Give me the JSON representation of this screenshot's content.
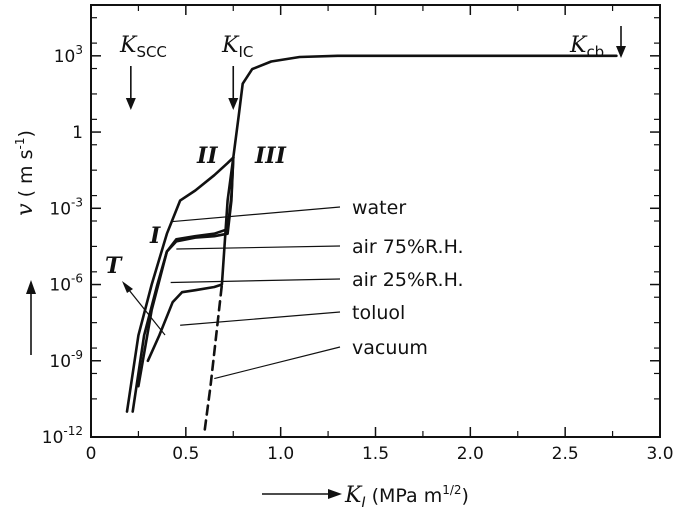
{
  "chart_data": {
    "type": "line",
    "title": "",
    "xlabel": "K_I (MPa m^1/2)",
    "ylabel": "v (m s^-1)",
    "x_axis": {
      "range": [
        0,
        3.0
      ],
      "ticks": [
        0,
        0.5,
        1.0,
        1.5,
        2.0,
        2.5,
        3.0
      ],
      "tick_labels": [
        "0",
        "0.5",
        "1.0",
        "1.5",
        "2.0",
        "2.5",
        "3.0"
      ]
    },
    "y_axis": {
      "scale": "log",
      "range": [
        1e-12,
        100000.0
      ],
      "ticks": [
        1e-12,
        1e-09,
        1e-06,
        0.001,
        1,
        1000.0
      ],
      "tick_labels": [
        "10^-12",
        "10^-9",
        "10^-6",
        "10^-3",
        "1",
        "10^3"
      ]
    },
    "grid": false,
    "legend": "none",
    "series": [
      {
        "name": "water",
        "x": [
          0.19,
          0.25,
          0.32,
          0.4,
          0.47,
          0.55,
          0.65,
          0.72,
          0.75
        ],
        "y": [
          1e-11,
          1e-08,
          1e-06,
          0.0001,
          0.002,
          0.005,
          0.02,
          0.06,
          0.1
        ]
      },
      {
        "name": "air 75%R.H.",
        "x": [
          0.22,
          0.28,
          0.35,
          0.4,
          0.45,
          0.55,
          0.65,
          0.72,
          0.74,
          0.75
        ],
        "y": [
          1e-11,
          1e-08,
          1e-06,
          2e-05,
          6e-05,
          8e-05,
          0.0001,
          0.00015,
          0.003,
          0.1
        ]
      },
      {
        "name": "air 25%R.H.",
        "x": [
          0.25,
          0.32,
          0.4,
          0.45,
          0.55,
          0.65,
          0.72,
          0.74,
          0.75
        ],
        "y": [
          1e-10,
          1e-07,
          2e-05,
          5e-05,
          7e-05,
          8e-05,
          0.0001,
          0.002,
          0.1
        ]
      },
      {
        "name": "toluol",
        "x": [
          0.3,
          0.36,
          0.43,
          0.48,
          0.55,
          0.65,
          0.69,
          0.72,
          0.75
        ],
        "y": [
          1e-09,
          1e-08,
          2e-07,
          5e-07,
          6e-07,
          8e-07,
          1e-06,
          0.002,
          0.1
        ]
      },
      {
        "name": "vacuum",
        "x": [
          0.6,
          0.63,
          0.66,
          0.69
        ],
        "y": [
          2e-12,
          1e-10,
          1e-08,
          1e-06
        ]
      },
      {
        "name": "",
        "x": [
          0.75,
          0.78,
          0.8,
          0.85,
          0.95,
          1.1,
          1.3,
          1.6,
          2.0,
          2.5,
          2.77
        ],
        "y": [
          0.1,
          5,
          80,
          300,
          600,
          900,
          1000,
          1000,
          1000,
          1000,
          1000
        ]
      }
    ],
    "annotations": [
      {
        "text": "K_SCC",
        "x": 0.21
      },
      {
        "text": "K_IC",
        "x": 0.75
      },
      {
        "text": "K_cb",
        "x": 2.77
      },
      {
        "text": "I",
        "x": 0.32,
        "y": 0.0001
      },
      {
        "text": "II",
        "x": 0.58,
        "y": 1
      },
      {
        "text": "III",
        "x": 0.93,
        "y": 1
      },
      {
        "text": "T",
        "x": 0.16,
        "y": 1e-05
      }
    ],
    "curve_labels": [
      "water",
      "air 75%R.H.",
      "air 25%R.H.",
      "toluol",
      "vacuum"
    ]
  }
}
